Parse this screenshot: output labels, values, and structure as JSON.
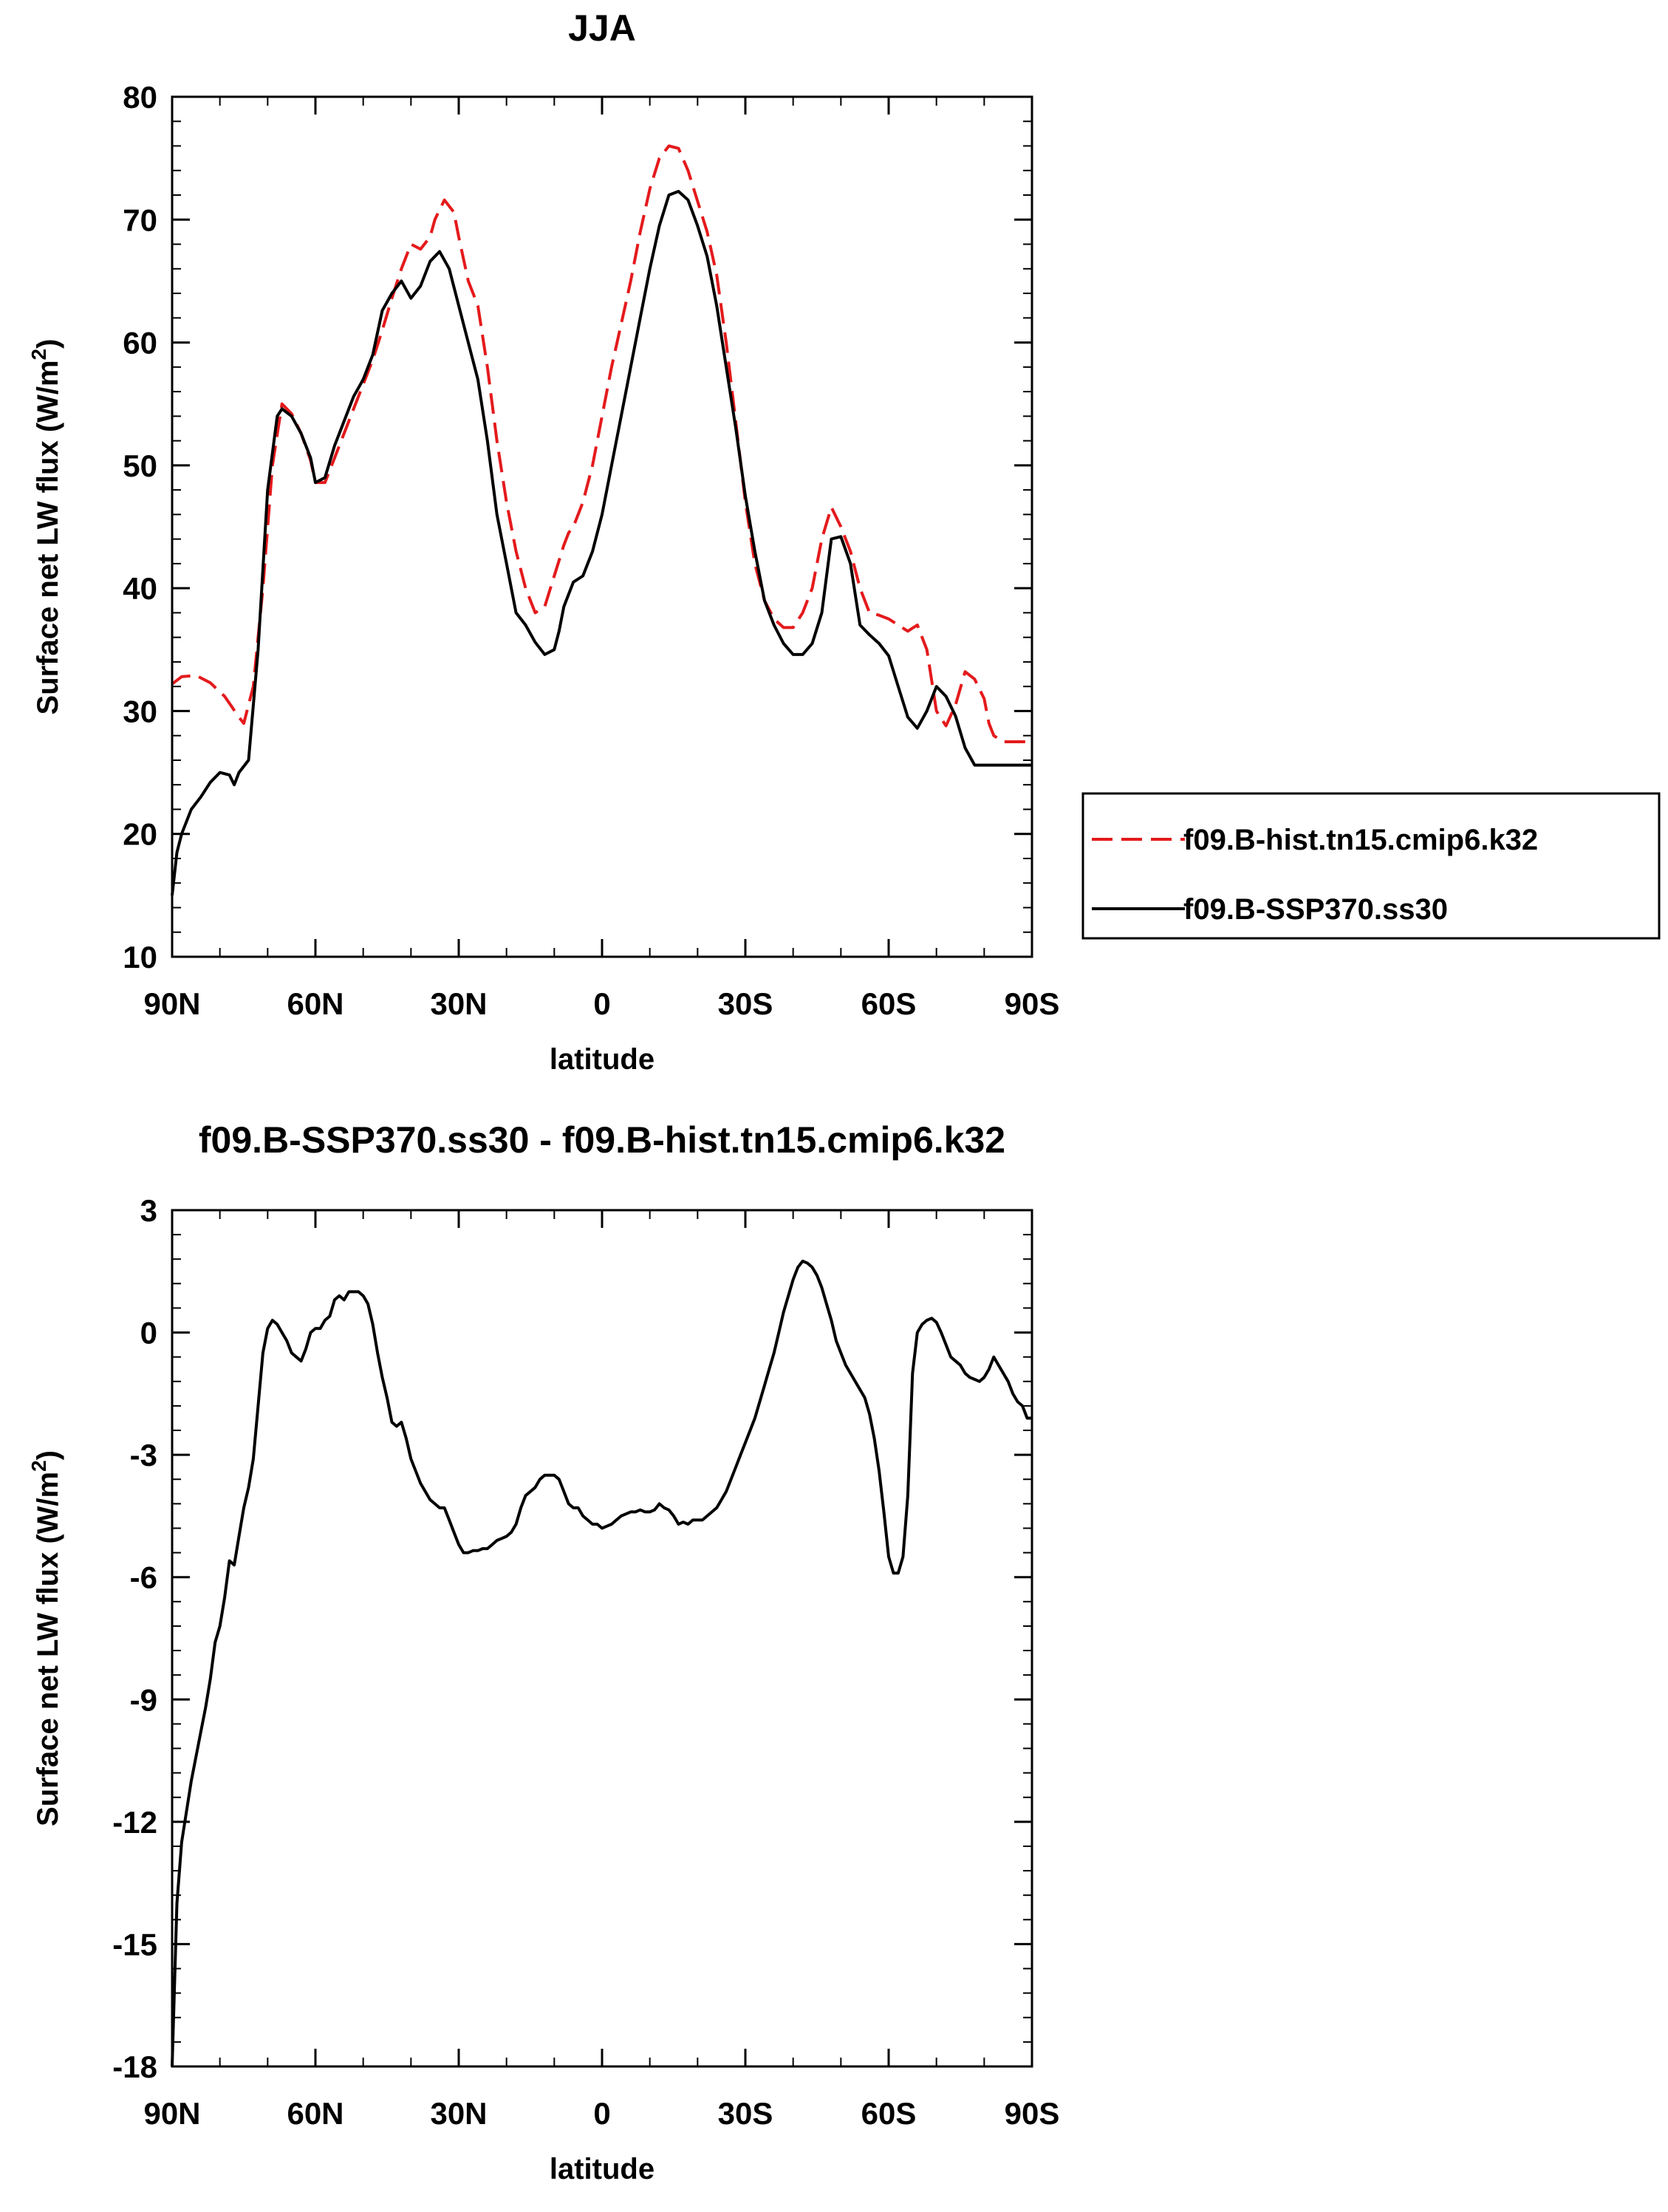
{
  "chart_data": [
    {
      "type": "line",
      "title": "JJA",
      "xlabel": "latitude",
      "ylabel_main": "Surface net LW flux (W/m",
      "ylabel_sup": "2",
      "ylabel_end": ")",
      "xlim": [
        90,
        -90
      ],
      "ylim": [
        10,
        80
      ],
      "xticks": [
        90,
        60,
        30,
        0,
        -30,
        -60,
        -90
      ],
      "xtick_labels": [
        "90N",
        "60N",
        "30N",
        "0",
        "30S",
        "60S",
        "90S"
      ],
      "yticks": [
        10,
        20,
        30,
        40,
        50,
        60,
        70,
        80
      ],
      "ytick_labels": [
        "10",
        "20",
        "30",
        "40",
        "50",
        "60",
        "70",
        "80"
      ],
      "legend_position": "right",
      "series": [
        {
          "name": "f09.B-hist.tn15.cmip6.k32",
          "color": "#e41a1c",
          "dash": "dashed",
          "x": [
            90,
            88,
            85,
            82,
            79,
            76,
            75,
            73,
            71,
            69,
            67,
            65,
            63,
            61,
            60,
            58,
            56,
            54,
            52,
            50,
            48,
            46,
            44,
            42,
            40,
            38,
            36,
            35,
            33,
            31,
            30,
            28,
            26,
            24,
            22,
            20,
            18,
            16,
            14,
            12,
            10,
            8,
            7,
            6,
            4,
            2,
            0,
            -2,
            -4,
            -6,
            -8,
            -10,
            -12,
            -14,
            -16,
            -18,
            -20,
            -22,
            -24,
            -26,
            -28,
            -30,
            -32,
            -34,
            -36,
            -38,
            -40,
            -42,
            -44,
            -46,
            -48,
            -50,
            -52,
            -54,
            -56,
            -58,
            -60,
            -62,
            -64,
            -66,
            -68,
            -70,
            -72,
            -74,
            -76,
            -78,
            -80,
            -81,
            -82,
            -84,
            -86,
            -88,
            -90
          ],
          "y": [
            32.2,
            32.8,
            32.9,
            32.3,
            31.2,
            29.5,
            29.0,
            32.0,
            40.0,
            50.0,
            55.0,
            54.2,
            52.6,
            50.4,
            48.6,
            48.6,
            50.6,
            52.6,
            54.6,
            56.6,
            58.6,
            61.0,
            63.6,
            66.0,
            68.0,
            67.6,
            68.6,
            70.0,
            71.6,
            70.6,
            68.6,
            65.0,
            63.0,
            58.0,
            52.0,
            47.0,
            43.0,
            40.0,
            38.0,
            38.5,
            41.0,
            43.5,
            44.5,
            45.0,
            47.0,
            50.0,
            54.0,
            58.0,
            61.5,
            65.0,
            69.0,
            72.5,
            75.0,
            76.0,
            75.8,
            74.0,
            71.5,
            69.0,
            65.5,
            60.0,
            53.5,
            47.0,
            42.0,
            39.0,
            37.5,
            36.8,
            36.8,
            38.0,
            40.0,
            44.0,
            46.6,
            45.0,
            43.0,
            40.0,
            38.0,
            37.8,
            37.5,
            37.0,
            36.5,
            37.0,
            35.0,
            30.0,
            28.8,
            30.5,
            33.2,
            32.6,
            31.0,
            29.0,
            28.0,
            27.5,
            27.5,
            27.5,
            27.5
          ]
        },
        {
          "name": "f09.B-SSP370.ss30",
          "color": "#000000",
          "dash": "solid",
          "x": [
            90,
            89,
            88,
            86,
            84,
            82,
            80,
            78,
            77,
            76,
            74,
            72,
            70,
            68,
            67,
            65,
            63,
            61,
            60,
            58,
            56,
            54,
            52,
            50,
            48,
            46,
            44,
            42,
            40,
            38,
            36,
            34,
            32,
            30,
            28,
            26,
            24,
            22,
            20,
            18,
            16,
            14,
            12,
            10,
            9,
            8,
            6,
            4,
            2,
            0,
            -2,
            -4,
            -6,
            -8,
            -10,
            -12,
            -14,
            -16,
            -18,
            -20,
            -22,
            -24,
            -26,
            -28,
            -30,
            -32,
            -34,
            -36,
            -38,
            -40,
            -42,
            -44,
            -46,
            -48,
            -50,
            -52,
            -54,
            -56,
            -58,
            -60,
            -62,
            -64,
            -66,
            -68,
            -70,
            -72,
            -74,
            -76,
            -78,
            -80,
            -82,
            -84,
            -86,
            -88,
            -90
          ],
          "y": [
            15.0,
            18.5,
            20.0,
            22.0,
            23.0,
            24.2,
            25.0,
            24.8,
            24.0,
            25.0,
            26.0,
            35.0,
            48.0,
            54.0,
            54.6,
            54.0,
            52.6,
            50.6,
            48.6,
            49.0,
            51.6,
            53.6,
            55.6,
            57.0,
            59.0,
            62.6,
            64.0,
            65.0,
            63.6,
            64.6,
            66.6,
            67.4,
            66.0,
            63.0,
            60.0,
            57.0,
            52.0,
            46.0,
            42.0,
            38.0,
            37.0,
            35.6,
            34.6,
            35.0,
            36.5,
            38.5,
            40.5,
            41.0,
            43.0,
            46.0,
            50.0,
            54.0,
            58.0,
            62.0,
            66.0,
            69.5,
            72.0,
            72.3,
            71.6,
            69.5,
            67.0,
            63.0,
            58.0,
            53.0,
            47.5,
            43.0,
            39.0,
            37.0,
            35.5,
            34.6,
            34.6,
            35.5,
            38.0,
            44.0,
            44.2,
            42.0,
            37.0,
            36.2,
            35.5,
            34.5,
            32.0,
            29.5,
            28.6,
            30.0,
            32.0,
            31.2,
            29.6,
            27.0,
            25.6,
            25.6,
            25.6,
            25.6,
            25.6,
            25.6,
            25.6
          ]
        }
      ]
    },
    {
      "type": "line",
      "title": "f09.B-SSP370.ss30 - f09.B-hist.tn15.cmip6.k32",
      "xlabel": "latitude",
      "ylabel_main": "Surface net LW flux (W/m",
      "ylabel_sup": "2",
      "ylabel_end": ")",
      "xlim": [
        90,
        -90
      ],
      "ylim": [
        -18,
        3
      ],
      "xticks": [
        90,
        60,
        30,
        0,
        -30,
        -60,
        -90
      ],
      "xtick_labels": [
        "90N",
        "60N",
        "30N",
        "0",
        "30S",
        "60S",
        "90S"
      ],
      "yticks": [
        -18,
        -15,
        -12,
        -9,
        -6,
        -3,
        0,
        3
      ],
      "ytick_labels": [
        "-18",
        "-15",
        "-12",
        "-9",
        "-6",
        "-3",
        "0",
        "3"
      ],
      "series": [
        {
          "color": "#000000",
          "dash": "solid",
          "x": [
            90,
            89,
            88,
            86,
            84,
            83,
            82,
            81,
            80,
            79,
            78,
            77,
            76,
            75,
            74,
            73,
            72,
            71,
            70,
            69,
            68,
            67,
            66,
            65,
            64,
            63,
            62,
            61,
            60,
            59,
            58,
            57,
            56,
            55,
            54,
            53,
            52,
            51,
            50,
            49,
            48,
            47,
            46,
            45,
            44,
            43,
            42,
            41,
            40,
            39,
            38,
            37,
            36,
            35,
            34,
            33,
            32,
            31,
            30,
            29,
            28,
            27,
            26,
            25,
            24,
            23,
            22,
            21,
            20,
            19,
            18,
            17,
            16,
            15,
            14,
            13,
            12,
            11,
            10,
            9,
            8,
            7,
            6,
            5,
            4,
            3,
            2,
            1,
            0,
            -1,
            -2,
            -3,
            -4,
            -5,
            -6,
            -7,
            -8,
            -9,
            -10,
            -11,
            -12,
            -13,
            -14,
            -15,
            -16,
            -17,
            -18,
            -19,
            -20,
            -21,
            -22,
            -23,
            -24,
            -25,
            -26,
            -27,
            -28,
            -29,
            -30,
            -31,
            -32,
            -33,
            -34,
            -35,
            -36,
            -37,
            -38,
            -39,
            -40,
            -41,
            -42,
            -43,
            -44,
            -45,
            -46,
            -47,
            -48,
            -49,
            -50,
            -51,
            -52,
            -53,
            -54,
            -55,
            -56,
            -57,
            -58,
            -59,
            -60,
            -61,
            -62,
            -63,
            -64,
            -65,
            -66,
            -67,
            -68,
            -69,
            -70,
            -71,
            -72,
            -73,
            -74,
            -75,
            -76,
            -77,
            -78,
            -79,
            -80,
            -81,
            -82,
            -83,
            -84,
            -85,
            -86,
            -87,
            -88,
            -89,
            -90
          ],
          "y": [
            -18.0,
            -14.0,
            -12.5,
            -11.0,
            -9.8,
            -9.2,
            -8.5,
            -7.6,
            -7.2,
            -6.5,
            -5.6,
            -5.7,
            -5.0,
            -4.3,
            -3.8,
            -3.1,
            -1.8,
            -0.5,
            0.1,
            0.3,
            0.2,
            0.0,
            -0.2,
            -0.5,
            -0.6,
            -0.7,
            -0.4,
            0.0,
            0.1,
            0.1,
            0.3,
            0.4,
            0.8,
            0.9,
            0.8,
            1.0,
            1.0,
            1.0,
            0.9,
            0.7,
            0.2,
            -0.5,
            -1.1,
            -1.6,
            -2.2,
            -2.3,
            -2.2,
            -2.6,
            -3.1,
            -3.4,
            -3.7,
            -3.9,
            -4.1,
            -4.2,
            -4.3,
            -4.3,
            -4.6,
            -4.9,
            -5.2,
            -5.4,
            -5.4,
            -5.35,
            -5.35,
            -5.3,
            -5.3,
            -5.2,
            -5.1,
            -5.05,
            -5.0,
            -4.9,
            -4.7,
            -4.3,
            -4.0,
            -3.9,
            -3.8,
            -3.6,
            -3.5,
            -3.5,
            -3.5,
            -3.6,
            -3.9,
            -4.2,
            -4.3,
            -4.3,
            -4.5,
            -4.6,
            -4.7,
            -4.7,
            -4.8,
            -4.75,
            -4.7,
            -4.6,
            -4.5,
            -4.45,
            -4.4,
            -4.4,
            -4.35,
            -4.4,
            -4.4,
            -4.35,
            -4.2,
            -4.3,
            -4.35,
            -4.5,
            -4.7,
            -4.65,
            -4.7,
            -4.6,
            -4.6,
            -4.6,
            -4.5,
            -4.4,
            -4.3,
            -4.1,
            -3.9,
            -3.6,
            -3.3,
            -3.0,
            -2.7,
            -2.4,
            -2.1,
            -1.7,
            -1.3,
            -0.9,
            -0.5,
            0.0,
            0.5,
            0.9,
            1.3,
            1.6,
            1.75,
            1.7,
            1.6,
            1.4,
            1.1,
            0.7,
            0.3,
            -0.2,
            -0.5,
            -0.8,
            -1.0,
            -1.2,
            -1.4,
            -1.6,
            -2.0,
            -2.6,
            -3.4,
            -4.4,
            -5.5,
            -5.9,
            -5.9,
            -5.5,
            -4.0,
            -1.0,
            0.0,
            0.2,
            0.3,
            0.35,
            0.25,
            0.0,
            -0.3,
            -0.6,
            -0.7,
            -0.8,
            -1.0,
            -1.1,
            -1.15,
            -1.2,
            -1.1,
            -0.9,
            -0.6,
            -0.8,
            -1.0,
            -1.2,
            -1.5,
            -1.7,
            -1.8,
            -2.1,
            -2.1
          ]
        }
      ]
    }
  ]
}
